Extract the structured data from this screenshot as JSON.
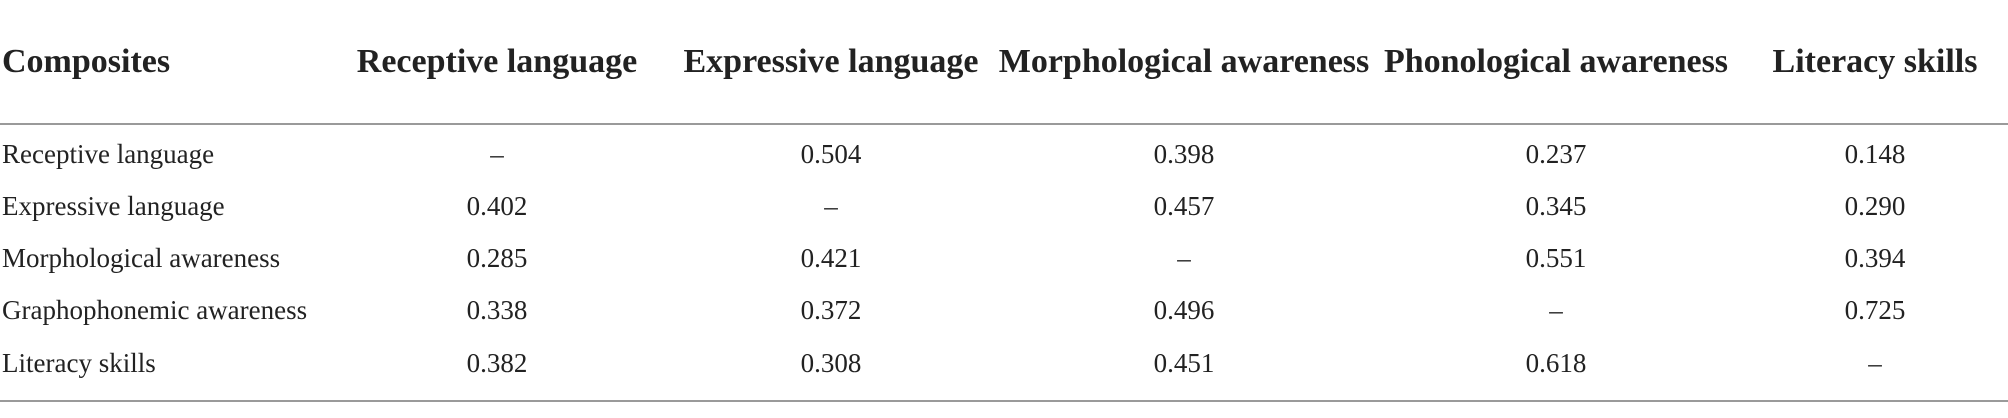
{
  "table": {
    "headers": [
      "Composites",
      "Receptive language",
      "Expressive language",
      "Morphological awareness",
      "Phonological awareness",
      "Literacy skills"
    ],
    "rows": [
      [
        "Receptive language",
        "–",
        "0.504",
        "0.398",
        "0.237",
        "0.148"
      ],
      [
        "Expressive language",
        "0.402",
        "–",
        "0.457",
        "0.345",
        "0.290"
      ],
      [
        "Morphological awareness",
        "0.285",
        "0.421",
        "–",
        "0.551",
        "0.394"
      ],
      [
        "Graphophonemic awareness",
        "0.338",
        "0.372",
        "0.496",
        "–",
        "0.725"
      ],
      [
        "Literacy skills",
        "0.382",
        "0.308",
        "0.451",
        "0.618",
        "–"
      ]
    ]
  }
}
